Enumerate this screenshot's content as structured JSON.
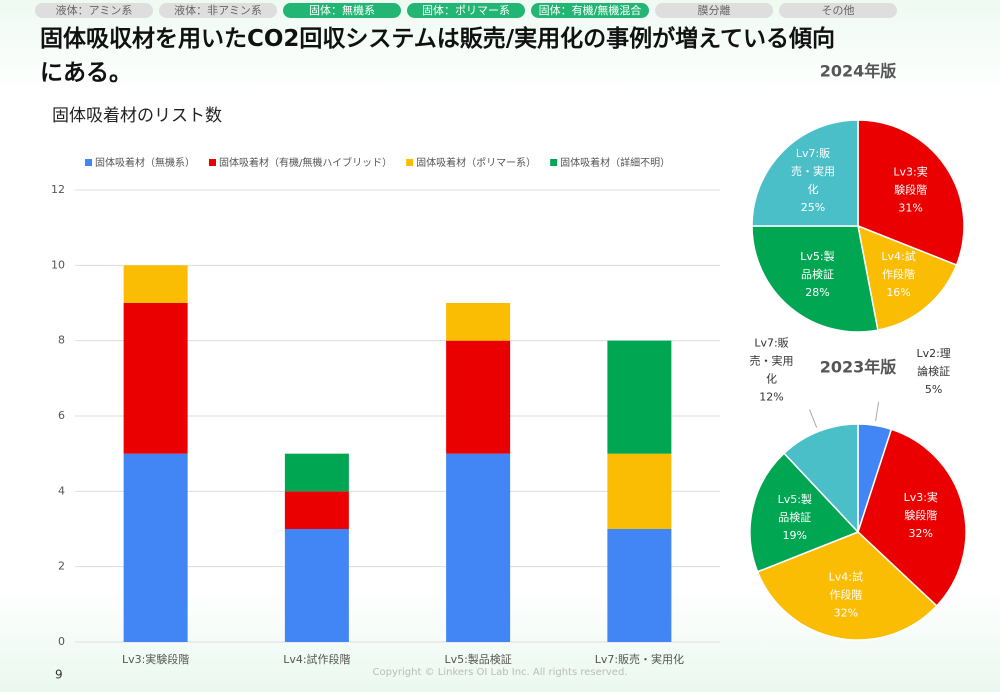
{
  "tabs": [
    {
      "label": "液体：アミン系",
      "active": false
    },
    {
      "label": "液体：非アミン系",
      "active": false
    },
    {
      "label": "固体：無機系",
      "active": true
    },
    {
      "label": "固体：ポリマー系",
      "active": true
    },
    {
      "label": "固体：有機/無機混合",
      "active": true
    },
    {
      "label": "膜分離",
      "active": false
    },
    {
      "label": "その他",
      "active": false
    }
  ],
  "title_lines": [
    "固体吸収材を用いたCO2回収システムは販売/実用化の事例が増えている傾向",
    "にある。"
  ],
  "page_number": "9",
  "copyright": "Copyright © Linkers OI Lab Inc. All rights reserved.",
  "chart_data": [
    {
      "type": "bar",
      "stacked": true,
      "title": "固体吸着材のリスト数",
      "categories": [
        "Lv3:実験段階",
        "Lv4:試作段階",
        "Lv5:製品検証",
        "Lv7:販売・実用化"
      ],
      "series": [
        {
          "name": "固体吸着材（無機系）",
          "color": "#4285f4",
          "values": [
            5,
            3,
            5,
            3
          ]
        },
        {
          "name": "固体吸着材（有機/無機ハイブリッド）",
          "color": "#ea0000",
          "values": [
            4,
            1,
            3,
            0
          ]
        },
        {
          "name": "固体吸着材（ポリマー系）",
          "color": "#fbbc04",
          "values": [
            1,
            0,
            1,
            2
          ]
        },
        {
          "name": "固体吸着材（詳細不明）",
          "color": "#00a651",
          "values": [
            0,
            1,
            0,
            3
          ]
        }
      ],
      "ylim": [
        0,
        12
      ],
      "yticks": [
        0,
        2,
        4,
        6,
        8,
        10,
        12
      ],
      "grid": true,
      "legend": "top"
    },
    {
      "type": "pie",
      "title": "2024年版",
      "label_lines": [
        [
          "Lv3:実",
          "験段階"
        ],
        [
          "Lv4:試",
          "作段階"
        ],
        [
          "Lv5:製",
          "品検証"
        ],
        [
          "Lv7:販",
          "売・実用",
          "化"
        ]
      ],
      "values": [
        31,
        16,
        28,
        25
      ],
      "value_labels": [
        "31%",
        "16%",
        "28%",
        "25%"
      ],
      "colors": [
        "#ea0000",
        "#fbbc04",
        "#00a651",
        "#4bbfc8"
      ]
    },
    {
      "type": "pie",
      "title": "2023年版",
      "label_lines": [
        [
          "Lv2:理",
          "論検証"
        ],
        [
          "Lv3:実",
          "験段階"
        ],
        [
          "Lv4:試",
          "作段階"
        ],
        [
          "Lv5:製",
          "品検証"
        ],
        [
          "Lv7:販",
          "売・実用",
          "化"
        ]
      ],
      "values": [
        5,
        32,
        32,
        19,
        12
      ],
      "value_labels": [
        "5%",
        "32%",
        "32%",
        "19%",
        "12%"
      ],
      "colors": [
        "#4285f4",
        "#ea0000",
        "#fbbc04",
        "#00a651",
        "#4bbfc8"
      ]
    }
  ]
}
